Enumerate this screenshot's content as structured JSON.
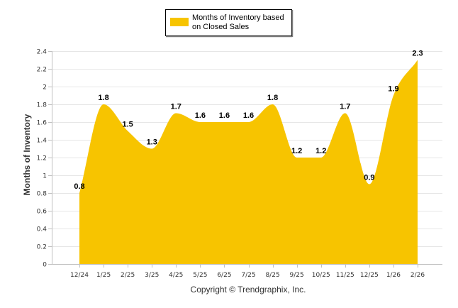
{
  "chart_data": {
    "type": "area",
    "title": "",
    "xlabel": "",
    "ylabel": "Months of Inventory",
    "categories": [
      "12/24",
      "1/25",
      "2/25",
      "3/25",
      "4/25",
      "5/25",
      "6/25",
      "7/25",
      "8/25",
      "9/25",
      "10/25",
      "11/25",
      "12/25",
      "1/26",
      "2/26"
    ],
    "series": [
      {
        "name": "Months of Inventory based on Closed Sales",
        "values": [
          0.8,
          1.8,
          1.5,
          1.3,
          1.7,
          1.6,
          1.6,
          1.6,
          1.8,
          1.2,
          1.2,
          1.7,
          0.9,
          1.9,
          2.3
        ],
        "color": "#F7C400"
      }
    ],
    "data_labels": [
      "0.8",
      "1.8",
      "1.5",
      "1.3",
      "1.7",
      "1.6",
      "1.6",
      "1.6",
      "1.8",
      "1.2",
      "1.2",
      "1.7",
      "0.9",
      "1.9",
      "2.3"
    ],
    "ylim": [
      0,
      2.4
    ],
    "yticks": [
      "0",
      "0.2",
      "0.4",
      "0.6",
      "0.8",
      "1",
      "1.2",
      "1.4",
      "1.6",
      "1.8",
      "2",
      "2.2",
      "2.4"
    ],
    "grid": true,
    "legend": {
      "position": "top",
      "line1": "Months of Inventory based",
      "line2": "on Closed Sales"
    },
    "footer": "Copyright © Trendgraphix, Inc.",
    "colors": {
      "fill": "#F7C400",
      "grid": "#E6E6E6",
      "axis": "#C0C0C0"
    }
  }
}
